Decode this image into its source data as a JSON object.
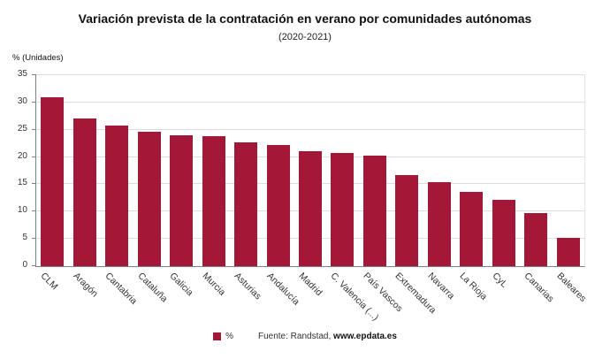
{
  "header": {
    "title": "Variación prevista de la contratación en verano por comunidades autónomas",
    "subtitle": "(2020-2021)"
  },
  "chart_data": {
    "type": "bar",
    "title": "Variación prevista de la contratación en verano por comunidades autónomas",
    "subtitle": "(2020-2021)",
    "xlabel": "",
    "ylabel": "% (Unidades)",
    "ylim": [
      0,
      35
    ],
    "ytick_step": 5,
    "grid": true,
    "legend_position": "bottom",
    "bar_color": "#a31837",
    "series_label": "%",
    "categories": [
      "CLM",
      "Aragón",
      "Cantabria",
      "Cataluña",
      "Galicia",
      "Murcia",
      "Asturias",
      "Andalucía",
      "Madrid",
      "C. Valencia (...)",
      "País Vascos",
      "Extremadura",
      "Navarra",
      "La Rioja",
      "CyL",
      "Canarias",
      "Baleares"
    ],
    "values": [
      31,
      27.1,
      25.8,
      24.6,
      24,
      23.9,
      22.7,
      22.2,
      21.1,
      20.7,
      20.3,
      16.7,
      15.4,
      13.6,
      12.2,
      9.7,
      5.2
    ]
  },
  "legend": {
    "label": "%",
    "swatch_color": "#a31837"
  },
  "footer": {
    "source": "Fuente: Randstad, ",
    "source_link": "www.epdata.es"
  }
}
